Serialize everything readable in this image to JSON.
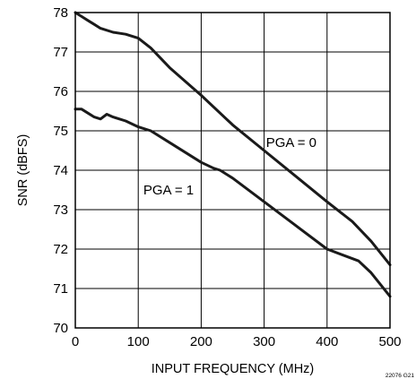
{
  "chart_data": {
    "type": "line",
    "title": "",
    "xlabel": "INPUT FREQUENCY (MHz)",
    "ylabel": "SNR (dBFS)",
    "xlim": [
      0,
      500
    ],
    "ylim": [
      70,
      78
    ],
    "xticks": [
      0,
      100,
      200,
      300,
      400,
      500
    ],
    "yticks": [
      70,
      71,
      72,
      73,
      74,
      75,
      76,
      77,
      78
    ],
    "grid": true,
    "legend": "none",
    "series": [
      {
        "name": "PGA = 0",
        "color": "#1a1a1a",
        "x": [
          0,
          10,
          20,
          30,
          40,
          60,
          80,
          100,
          120,
          150,
          200,
          250,
          300,
          350,
          400,
          440,
          470,
          500
        ],
        "y": [
          78.0,
          77.9,
          77.8,
          77.7,
          77.6,
          77.5,
          77.45,
          77.35,
          77.1,
          76.6,
          75.9,
          75.15,
          74.5,
          73.85,
          73.2,
          72.7,
          72.2,
          71.6
        ]
      },
      {
        "name": "PGA = 1",
        "color": "#1a1a1a",
        "x": [
          0,
          10,
          20,
          30,
          40,
          50,
          60,
          80,
          100,
          120,
          150,
          200,
          220,
          230,
          250,
          300,
          350,
          400,
          450,
          470,
          500
        ],
        "y": [
          75.55,
          75.55,
          75.45,
          75.35,
          75.3,
          75.42,
          75.35,
          75.25,
          75.1,
          75.0,
          74.7,
          74.2,
          74.05,
          74.0,
          73.8,
          73.2,
          72.6,
          72.0,
          71.7,
          71.4,
          70.8
        ]
      }
    ],
    "annotations": [
      {
        "text": "PGA = 0",
        "x": 303,
        "y": 74.7
      },
      {
        "text": "PGA = 1",
        "x": 108,
        "y": 73.5
      }
    ],
    "figure_code": "22076 G21"
  }
}
